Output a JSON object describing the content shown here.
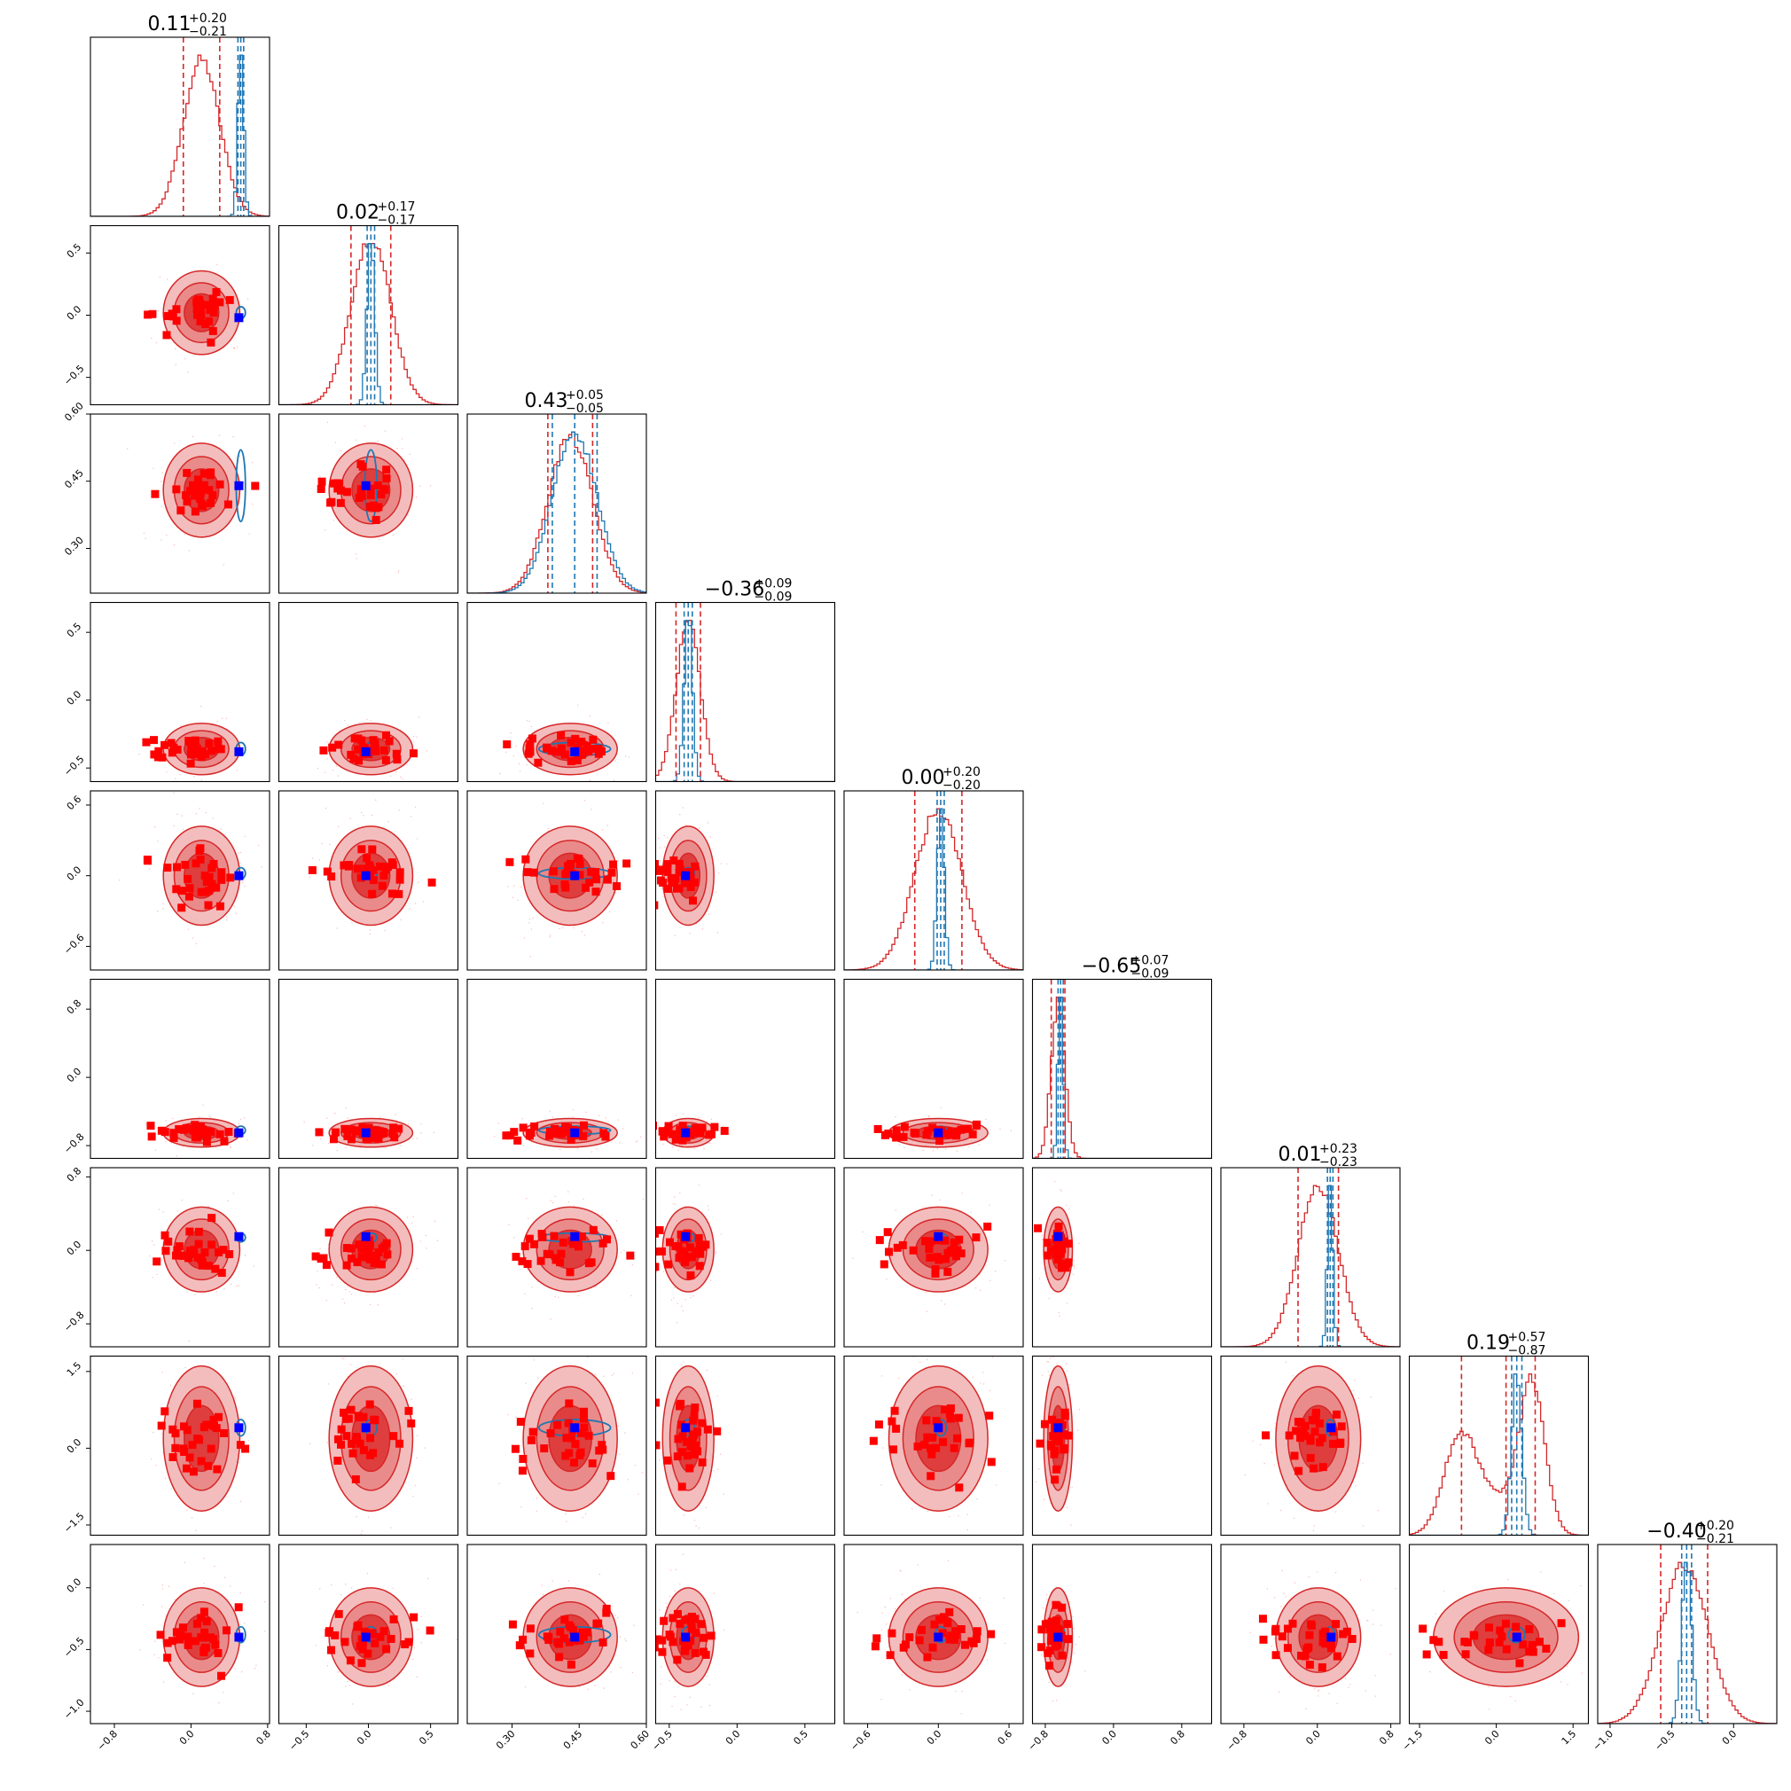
{
  "chart_data": {
    "type": "corner",
    "n_params": 9,
    "titles": [
      {
        "median": "0.11",
        "plus": "+0.20",
        "minus": "−0.21"
      },
      {
        "median": "0.02",
        "plus": "+0.17",
        "minus": "−0.17"
      },
      {
        "median": "0.43",
        "plus": "+0.05",
        "minus": "−0.05"
      },
      {
        "median": "−0.36",
        "plus": "+0.09",
        "minus": "−0.09"
      },
      {
        "median": "0.00",
        "plus": "+0.20",
        "minus": "−0.20"
      },
      {
        "median": "−0.65",
        "plus": "+0.07",
        "minus": "−0.09"
      },
      {
        "median": "0.01",
        "plus": "+0.23",
        "minus": "−0.23"
      },
      {
        "median": "0.19",
        "plus": "+0.57",
        "minus": "−0.87"
      },
      {
        "median": "−0.40",
        "plus": "+0.20",
        "minus": "−0.21"
      }
    ],
    "ranges": [
      [
        -1.05,
        0.82
      ],
      [
        -0.72,
        0.72
      ],
      [
        0.2,
        0.6
      ],
      [
        -0.6,
        0.72
      ],
      [
        -0.8,
        0.72
      ],
      [
        -0.95,
        1.15
      ],
      [
        -1.05,
        0.9
      ],
      [
        -1.7,
        1.8
      ],
      [
        -1.1,
        0.35
      ]
    ],
    "ticks": [
      [
        "−0.8",
        "0.0",
        "0.8"
      ],
      [
        "−0.5",
        "0.0",
        "0.5"
      ],
      [
        "0.30",
        "0.45",
        "0.60"
      ],
      [
        "−0.5",
        "0.0",
        "0.5"
      ],
      [
        "−0.6",
        "0.0",
        "0.6"
      ],
      [
        "−0.8",
        "0.0",
        "0.8"
      ],
      [
        "−0.8",
        "0.0",
        "0.8"
      ],
      [
        "−1.5",
        "0.0",
        "1.5"
      ],
      [
        "−1.0",
        "−0.5",
        "0.0"
      ]
    ],
    "tick_values": [
      [
        -0.8,
        0.0,
        0.8
      ],
      [
        -0.5,
        0.0,
        0.5
      ],
      [
        0.3,
        0.45,
        0.6
      ],
      [
        -0.5,
        0.0,
        0.5
      ],
      [
        -0.6,
        0.0,
        0.6
      ],
      [
        -0.8,
        0.0,
        0.8
      ],
      [
        -0.8,
        0.0,
        0.8
      ],
      [
        -1.5,
        0.0,
        1.5
      ],
      [
        -1.0,
        -0.5,
        0.0
      ]
    ],
    "y_ticks": [
      [
        "0.5",
        "0.0",
        "−0.5"
      ],
      [
        "0.60",
        "0.45",
        "0.30"
      ],
      [
        "0.5",
        "0.0",
        "−0.5"
      ],
      [
        "0.6",
        "0.0",
        "−0.6"
      ],
      [
        "0.8",
        "0.0",
        "−0.8"
      ],
      [
        "0.8",
        "0.0",
        "−0.8"
      ],
      [
        "1.5",
        "0.0",
        "−1.5"
      ],
      [
        "0.0",
        "−0.5",
        "−1.0"
      ]
    ],
    "series": [
      {
        "color": "#d62728",
        "stds": [
          0.19,
          0.16,
          0.05,
          0.09,
          0.2,
          0.08,
          0.22,
          0.75,
          0.19
        ],
        "medians": [
          0.11,
          0.02,
          0.43,
          -0.36,
          0.0,
          -0.65,
          0.01,
          0.19,
          -0.4
        ],
        "bimodal_param": 7
      },
      {
        "color": "#1f77b4",
        "stds": [
          0.03,
          0.03,
          0.05,
          0.03,
          0.03,
          0.03,
          0.03,
          0.1,
          0.04
        ],
        "medians": [
          0.52,
          0.02,
          0.44,
          -0.36,
          0.02,
          -0.62,
          0.14,
          0.4,
          -0.38
        ]
      }
    ],
    "truth_markers": {
      "color": "#0000ff",
      "values": [
        0.5,
        -0.02,
        0.44,
        -0.38,
        0.0,
        -0.65,
        0.15,
        0.4,
        -0.4
      ]
    },
    "sample_markers": {
      "color": "#ff0000"
    },
    "grid": false,
    "colors": {
      "posterior_red": "#d62728",
      "posterior_blue": "#1f77b4",
      "truth": "#0000ff",
      "samples": "#ff0000"
    }
  }
}
